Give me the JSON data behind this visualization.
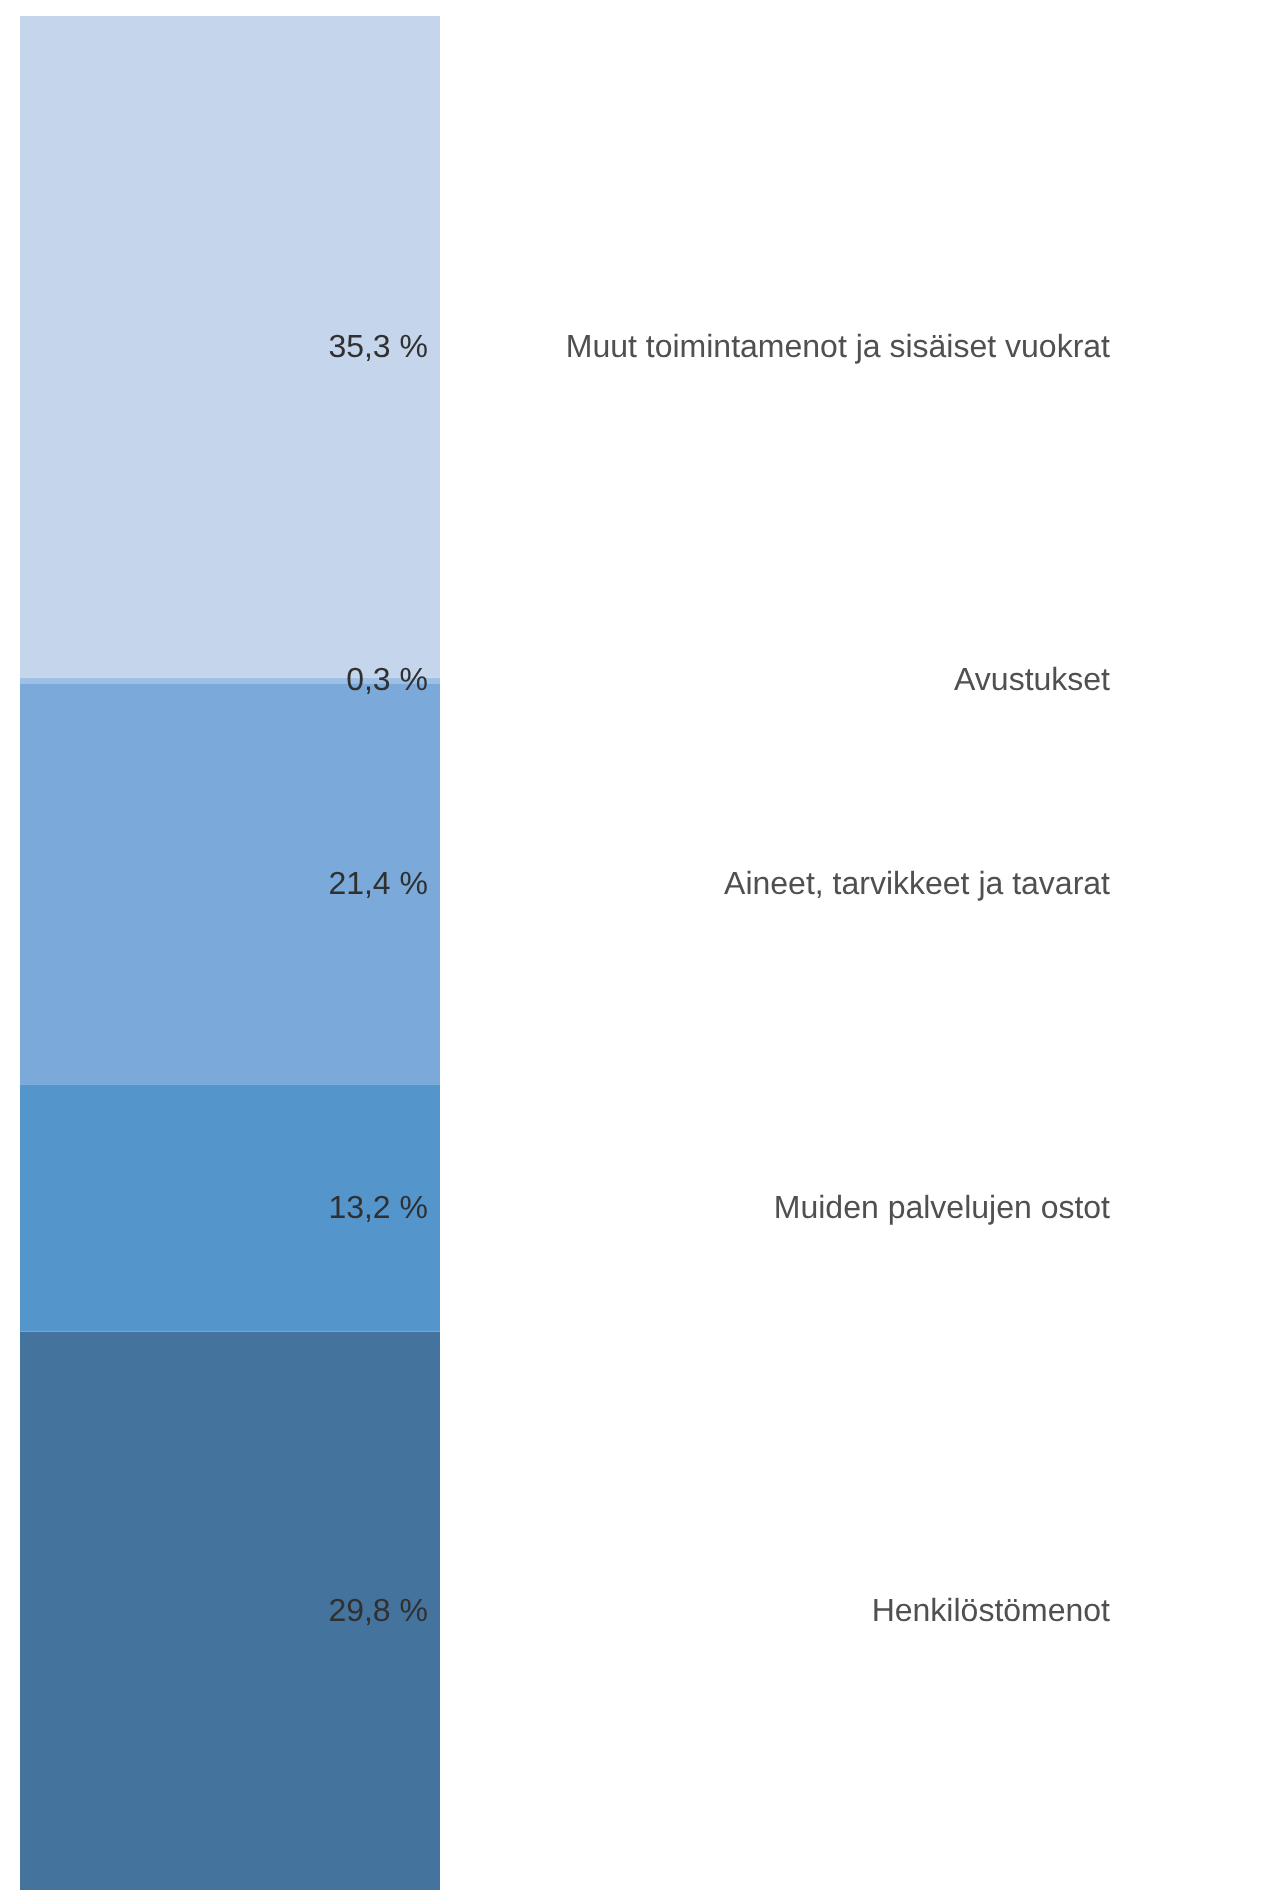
{
  "chart_data": {
    "type": "bar",
    "stacked": true,
    "categories": [
      null
    ],
    "ylim": [
      0,
      100
    ],
    "tick_labels": false,
    "legend": false,
    "series": [
      {
        "name": "Henkilöstömenot",
        "color": "#44739e",
        "values": [
          29.8
        ],
        "value_labels": [
          "29,8 %"
        ]
      },
      {
        "name": "Muiden palvelujen ostot",
        "color": "#5495cb",
        "values": [
          13.2
        ],
        "value_labels": [
          "13,2 %"
        ]
      },
      {
        "name": "Aineet, tarvikkeet ja tavarat",
        "color": "#7aa9da",
        "values": [
          21.4
        ],
        "value_labels": [
          "21,4 %"
        ]
      },
      {
        "name": "Avustukset",
        "color": "#9fc0e4",
        "values": [
          0.3
        ],
        "value_labels": [
          "0,3 %"
        ]
      },
      {
        "name": "Muut toimintamenot ja sisäiset vuokrat",
        "color": "#c4d5ec",
        "values": [
          35.3
        ],
        "value_labels": [
          "35,3 %"
        ]
      }
    ]
  }
}
